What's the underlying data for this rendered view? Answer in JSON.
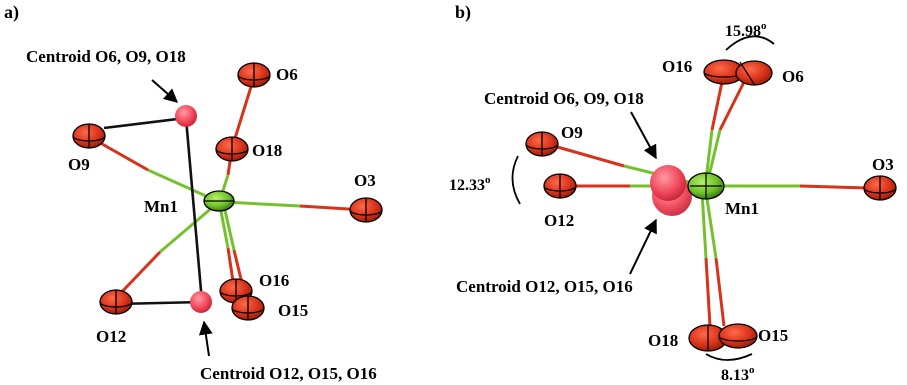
{
  "panels": [
    {
      "id": "a",
      "label": "a)",
      "labels": {
        "centroid_top": "Centroid O6, O9, O18",
        "centroid_bottom": "Centroid O12, O15, O16",
        "o6": "O6",
        "o9": "O9",
        "o18": "O18",
        "mn1": "Mn1",
        "o3": "O3",
        "o16": "O16",
        "o15": "O15",
        "o12": "O12"
      }
    },
    {
      "id": "b",
      "label": "b)",
      "labels": {
        "centroid_top": "Centroid O6, O9, O18",
        "centroid_bottom": "Centroid O12, O15, O16",
        "o16": "O16",
        "o6": "O6",
        "o9": "O9",
        "o12": "O12",
        "mn1": "Mn1",
        "o3": "O3",
        "o18": "O18",
        "o15": "O15"
      },
      "angles": {
        "top": "15.98",
        "left": "12.33",
        "bottom": "8.13",
        "unit": "o"
      }
    }
  ],
  "colors": {
    "oxygen": "#d8321a",
    "manganese": "#74c12e",
    "centroid": "#f0485a",
    "outline": "#000000",
    "prism_line": "#111111"
  }
}
